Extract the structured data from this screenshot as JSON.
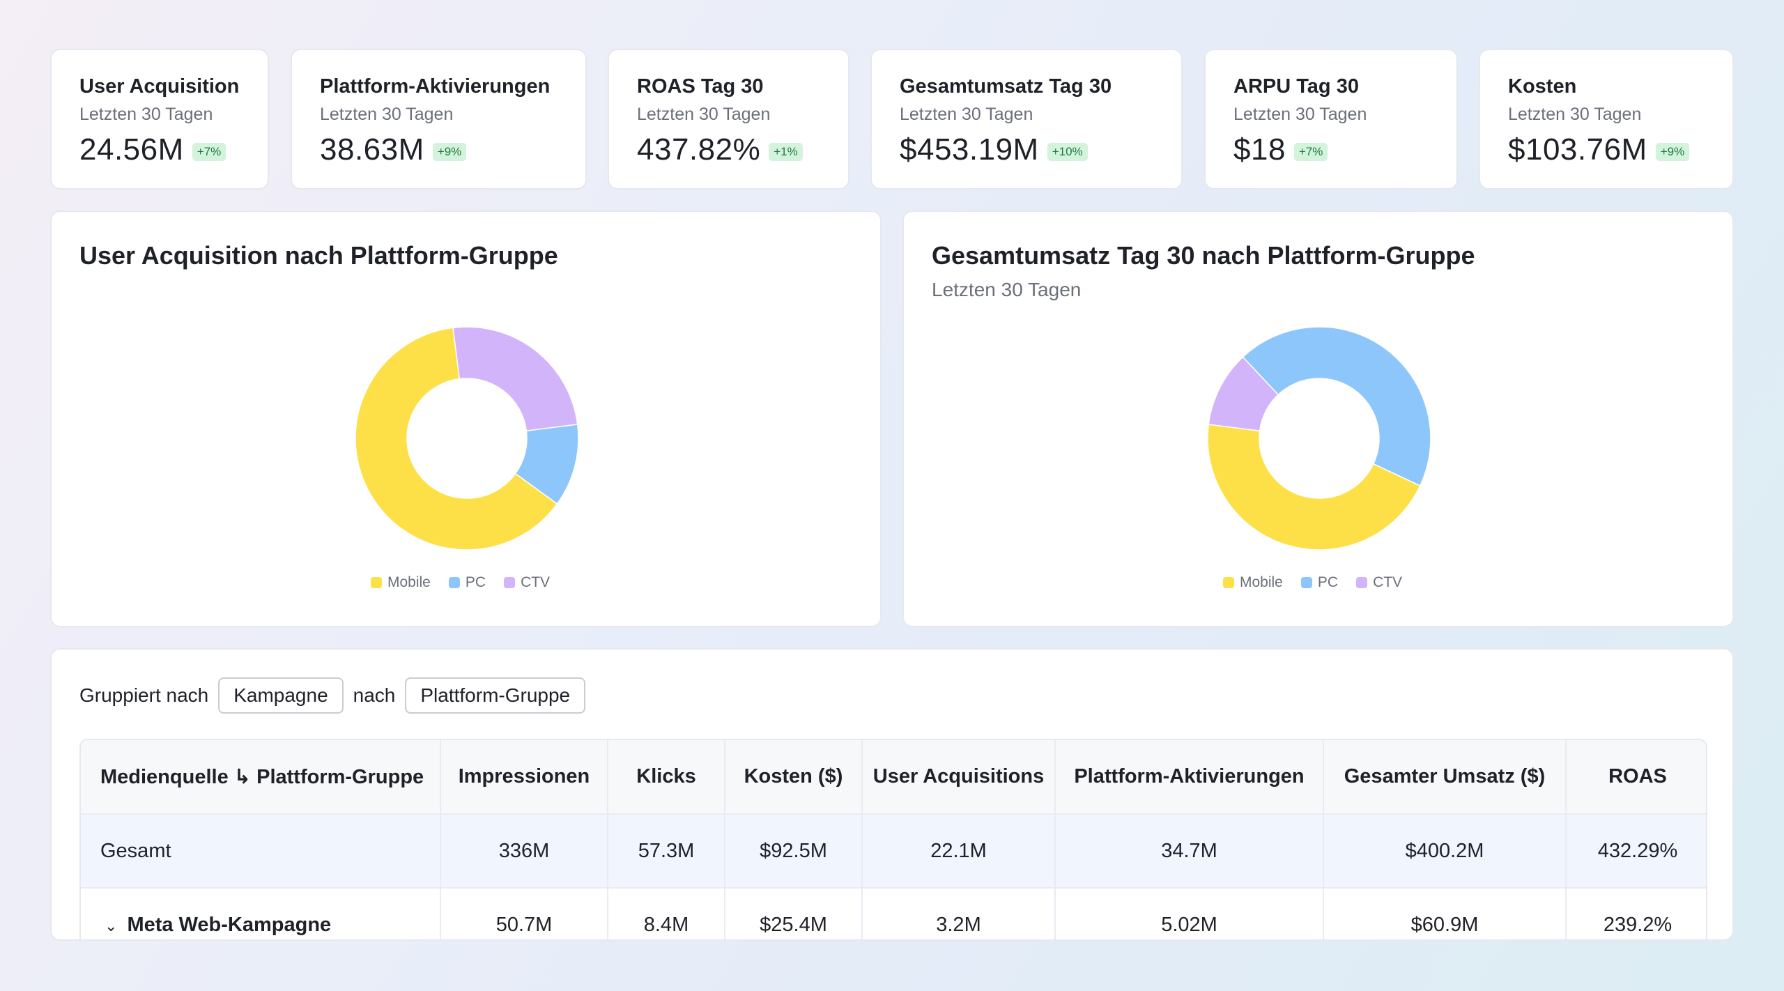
{
  "kpis": [
    {
      "title": "User Acquisition",
      "subtitle": "Letzten 30 Tagen",
      "value": "24.56M",
      "change": "+7%"
    },
    {
      "title": "Plattform-Aktivierungen",
      "subtitle": "Letzten 30 Tagen",
      "value": "38.63M",
      "change": "+9%"
    },
    {
      "title": "ROAS Tag 30",
      "subtitle": "Letzten 30 Tagen",
      "value": "437.82%",
      "change": "+1%"
    },
    {
      "title": "Gesamtumsatz Tag 30",
      "subtitle": "Letzten 30 Tagen",
      "value": "$453.19M",
      "change": "+10%"
    },
    {
      "title": "ARPU Tag 30",
      "subtitle": "Letzten 30 Tagen",
      "value": "$18",
      "change": "+7%"
    },
    {
      "title": "Kosten",
      "subtitle": "Letzten 30 Tagen",
      "value": "$103.76M",
      "change": "+9%"
    }
  ],
  "colors": {
    "mobile": "#fde047",
    "pc": "#8dc6fb",
    "ctv": "#d2b4fb",
    "badge_bg": "#d3f3dd",
    "badge_text": "#217a3f"
  },
  "chart_data": [
    {
      "type": "pie",
      "title": "User Acquisition nach Plattform-Gruppe",
      "subtitle": "",
      "categories": [
        "Mobile",
        "PC",
        "CTV"
      ],
      "values": [
        63,
        12,
        25
      ],
      "start_category": "CTV",
      "legend": "bottom"
    },
    {
      "type": "pie",
      "title": "Gesamtumsatz Tag 30 nach Plattform-Gruppe",
      "subtitle": "Letzten 30 Tagen",
      "categories": [
        "Mobile",
        "PC",
        "CTV"
      ],
      "values": [
        45,
        44,
        11
      ],
      "start_category": "PC",
      "legend": "bottom"
    }
  ],
  "grouping": {
    "label": "Gruppiert nach",
    "primary": "Kampagne",
    "connector": "nach",
    "secondary": "Plattform-Gruppe"
  },
  "table": {
    "headers": [
      "Medienquelle ↳ Plattform-Gruppe",
      "Impressionen",
      "Klicks",
      "Kosten ($)",
      "User Acquisitions",
      "Plattform-Aktivierungen",
      "Gesamter Umsatz ($)",
      "ROAS"
    ],
    "rows": [
      {
        "cells": [
          "Gesamt",
          "336M",
          "57.3M",
          "$92.5M",
          "22.1M",
          "34.7M",
          "$400.2M",
          "432.29%"
        ]
      },
      {
        "cells": [
          "Meta Web-Kampagne",
          "50.7M",
          "8.4M",
          "$25.4M",
          "3.2M",
          "5.02M",
          "$60.9M",
          "239.2%"
        ]
      }
    ]
  }
}
